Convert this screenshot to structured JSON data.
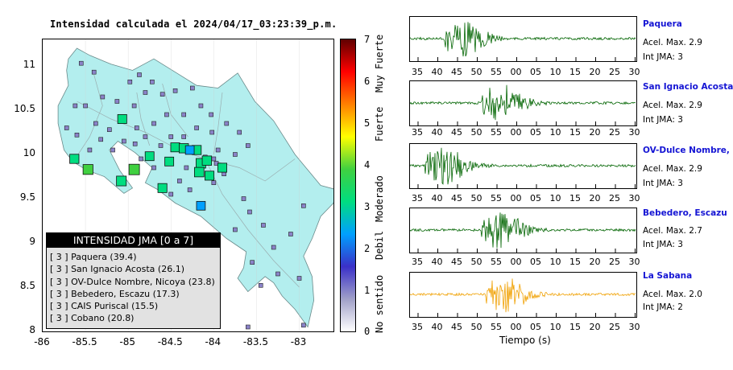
{
  "title": "Intensidad calculada el 2024/04/17_03:23:39_p.m.",
  "map": {
    "lat_ticks": [
      "11",
      "10.5",
      "10",
      "9.5",
      "9",
      "8.5",
      "8"
    ],
    "lon_ticks": [
      "-86",
      "-85.5",
      "-85",
      "-84.5",
      "-84",
      "-83.5",
      "-83"
    ],
    "lon_range": [
      -86,
      -82.6
    ],
    "lat_range": [
      8,
      11.3
    ],
    "land_color": "#b3eeee",
    "ocean_color": "#ffffff"
  },
  "legend": {
    "title": "INTENSIDAD JMA [0 a 7]",
    "rows": [
      "[ 3 ]  Paquera (39.4)",
      "[ 3 ]  San Ignacio Acosta (26.1)",
      "[ 3 ]  OV-Dulce Nombre, Nicoya (23.8)",
      "[ 3 ]  Bebedero, Escazu (17.3)",
      "[ 3 ]  CAIS Puriscal (15.5)",
      "[ 3 ]  Cobano (20.8)"
    ]
  },
  "colorbar": {
    "ticks": [
      "7",
      "6",
      "5",
      "4",
      "3",
      "2",
      "1",
      "0"
    ],
    "labels": [
      "Muy Fuerte",
      "Fuerte",
      "Moderado",
      "Debil",
      "No sentido"
    ],
    "colors": [
      "#ffffff",
      "#a0a0c8",
      "#3a30c8",
      "#00a0ff",
      "#00dd80",
      "#40d040",
      "#ffff00",
      "#ff8000",
      "#ff0000",
      "#600000"
    ]
  },
  "traces": [
    {
      "name": "Paquera",
      "acel": "Acel. Max. 2.9",
      "int": "Int JMA: 3",
      "color": "#006400",
      "ticks": [
        "35",
        "40",
        "45",
        "50",
        "55",
        "00",
        "05",
        "10",
        "15",
        "20",
        "25",
        "30"
      ],
      "peak_sec": 45
    },
    {
      "name": "San Ignacio Acosta",
      "acel": "Acel. Max. 2.9",
      "int": "Int JMA: 3",
      "color": "#006400",
      "ticks": [
        "35",
        "40",
        "45",
        "50",
        "55",
        "00",
        "05",
        "10",
        "15",
        "20",
        "25",
        "30"
      ],
      "peak_sec": 55
    },
    {
      "name": "OV-Dulce Nombre, Nicoya",
      "acel": "Acel. Max. 2.9",
      "int": "Int JMA: 3",
      "color": "#006400",
      "ticks": [
        "35",
        "40",
        "45",
        "50",
        "55",
        "00",
        "05",
        "10",
        "15",
        "20",
        "25",
        "30"
      ],
      "peak_sec": 40
    },
    {
      "name": "Bebedero, Escazu",
      "acel": "Acel. Max. 2.7",
      "int": "Int JMA: 3",
      "color": "#006400",
      "ticks": [
        "35",
        "40",
        "45",
        "50",
        "55",
        "00",
        "05",
        "10",
        "15",
        "20",
        "25",
        "30"
      ],
      "peak_sec": 55
    },
    {
      "name": "La Sabana",
      "acel": "Acel. Max. 2.0",
      "int": "Int JMA: 2",
      "color": "#f0a000",
      "ticks": [
        "35",
        "40",
        "45",
        "50",
        "55",
        "00",
        "05",
        "10",
        "15",
        "20",
        "25",
        "30"
      ],
      "peak_sec": 56
    }
  ],
  "time_label": "Tiempo (s)",
  "stations": [
    {
      "lon": -85.63,
      "lat": 9.95,
      "int": 3
    },
    {
      "lon": -85.47,
      "lat": 9.83,
      "int": 3.5
    },
    {
      "lon": -85.08,
      "lat": 9.7,
      "int": 3.4
    },
    {
      "lon": -84.93,
      "lat": 9.83,
      "int": 3.9
    },
    {
      "lon": -85.07,
      "lat": 10.4,
      "int": 2.9
    },
    {
      "lon": -84.75,
      "lat": 9.98,
      "int": 2.8
    },
    {
      "lon": -84.52,
      "lat": 9.92,
      "int": 2.8
    },
    {
      "lon": -84.45,
      "lat": 10.08,
      "int": 2.9
    },
    {
      "lon": -84.35,
      "lat": 10.07,
      "int": 3.1
    },
    {
      "lon": -84.2,
      "lat": 10.05,
      "int": 3.0
    },
    {
      "lon": -84.15,
      "lat": 9.9,
      "int": 3.3
    },
    {
      "lon": -84.08,
      "lat": 9.93,
      "int": 3.1
    },
    {
      "lon": -84.17,
      "lat": 9.8,
      "int": 3.2
    },
    {
      "lon": -84.05,
      "lat": 9.76,
      "int": 2.9
    },
    {
      "lon": -83.9,
      "lat": 9.85,
      "int": 2.9
    },
    {
      "lon": -84.6,
      "lat": 9.62,
      "int": 2.9
    },
    {
      "lon": -84.28,
      "lat": 10.05,
      "int": 2.7
    },
    {
      "lon": -84.15,
      "lat": 9.42,
      "int": 2.7
    }
  ],
  "small_stations": [
    [
      -85.55,
      11.03
    ],
    [
      -85.4,
      10.93
    ],
    [
      -84.98,
      10.82
    ],
    [
      -84.87,
      10.9
    ],
    [
      -85.3,
      10.65
    ],
    [
      -85.13,
      10.6
    ],
    [
      -84.93,
      10.55
    ],
    [
      -84.8,
      10.7
    ],
    [
      -84.72,
      10.82
    ],
    [
      -84.6,
      10.68
    ],
    [
      -84.45,
      10.72
    ],
    [
      -84.25,
      10.75
    ],
    [
      -84.15,
      10.55
    ],
    [
      -84.03,
      10.45
    ],
    [
      -84.35,
      10.45
    ],
    [
      -84.55,
      10.45
    ],
    [
      -84.7,
      10.35
    ],
    [
      -84.9,
      10.3
    ],
    [
      -85.22,
      10.28
    ],
    [
      -85.38,
      10.35
    ],
    [
      -85.5,
      10.55
    ],
    [
      -85.62,
      10.55
    ],
    [
      -85.72,
      10.3
    ],
    [
      -85.6,
      10.22
    ],
    [
      -85.45,
      10.05
    ],
    [
      -85.32,
      10.17
    ],
    [
      -85.18,
      10.05
    ],
    [
      -85.05,
      10.15
    ],
    [
      -84.92,
      10.12
    ],
    [
      -84.8,
      10.2
    ],
    [
      -84.62,
      10.1
    ],
    [
      -84.5,
      10.2
    ],
    [
      -84.35,
      10.2
    ],
    [
      -84.2,
      10.3
    ],
    [
      -84.02,
      10.25
    ],
    [
      -83.85,
      10.35
    ],
    [
      -83.7,
      10.25
    ],
    [
      -83.6,
      10.1
    ],
    [
      -83.75,
      10.0
    ],
    [
      -83.95,
      10.05
    ],
    [
      -84.0,
      9.95
    ],
    [
      -84.1,
      9.97
    ],
    [
      -83.97,
      9.9
    ],
    [
      -83.88,
      9.78
    ],
    [
      -84.0,
      9.68
    ],
    [
      -84.32,
      9.85
    ],
    [
      -84.4,
      9.7
    ],
    [
      -84.28,
      9.6
    ],
    [
      -84.5,
      9.55
    ],
    [
      -84.7,
      9.85
    ],
    [
      -84.85,
      9.95
    ],
    [
      -83.65,
      9.5
    ],
    [
      -83.58,
      9.35
    ],
    [
      -83.42,
      9.2
    ],
    [
      -83.3,
      8.95
    ],
    [
      -83.1,
      9.1
    ],
    [
      -82.95,
      9.42
    ],
    [
      -83.25,
      8.65
    ],
    [
      -83.0,
      8.6
    ],
    [
      -83.55,
      8.78
    ],
    [
      -83.45,
      8.52
    ],
    [
      -82.95,
      8.07
    ],
    [
      -83.6,
      8.05
    ],
    [
      -83.75,
      9.15
    ]
  ],
  "land": [
    [
      -85.7,
      11.08
    ],
    [
      -85.6,
      11.2
    ],
    [
      -85.45,
      11.12
    ],
    [
      -85.2,
      11.02
    ],
    [
      -84.95,
      10.95
    ],
    [
      -84.7,
      11.08
    ],
    [
      -84.45,
      10.93
    ],
    [
      -84.2,
      10.78
    ],
    [
      -83.95,
      10.75
    ],
    [
      -83.72,
      10.92
    ],
    [
      -83.52,
      10.6
    ],
    [
      -83.3,
      10.38
    ],
    [
      -83.05,
      10.0
    ],
    [
      -82.75,
      9.65
    ],
    [
      -82.56,
      9.6
    ],
    [
      -82.6,
      9.45
    ],
    [
      -82.75,
      9.3
    ],
    [
      -82.85,
      9.05
    ],
    [
      -82.95,
      8.85
    ],
    [
      -82.85,
      8.62
    ],
    [
      -82.83,
      8.35
    ],
    [
      -82.9,
      8.05
    ],
    [
      -83.05,
      8.25
    ],
    [
      -83.2,
      8.4
    ],
    [
      -83.3,
      8.55
    ],
    [
      -83.4,
      8.62
    ],
    [
      -83.6,
      8.45
    ],
    [
      -83.72,
      8.6
    ],
    [
      -83.65,
      8.72
    ],
    [
      -83.62,
      8.9
    ],
    [
      -83.85,
      9.05
    ],
    [
      -84.15,
      9.3
    ],
    [
      -84.45,
      9.45
    ],
    [
      -84.65,
      9.6
    ],
    [
      -84.8,
      9.68
    ],
    [
      -84.72,
      9.85
    ],
    [
      -84.92,
      10.02
    ],
    [
      -85.12,
      10.15
    ],
    [
      -85.22,
      10.05
    ],
    [
      -85.1,
      9.82
    ],
    [
      -84.95,
      9.62
    ],
    [
      -85.05,
      9.56
    ],
    [
      -85.28,
      9.75
    ],
    [
      -85.48,
      9.82
    ],
    [
      -85.65,
      9.92
    ],
    [
      -85.75,
      10.05
    ],
    [
      -85.82,
      10.35
    ],
    [
      -85.82,
      10.55
    ],
    [
      -85.7,
      10.78
    ],
    [
      -85.72,
      10.95
    ]
  ]
}
